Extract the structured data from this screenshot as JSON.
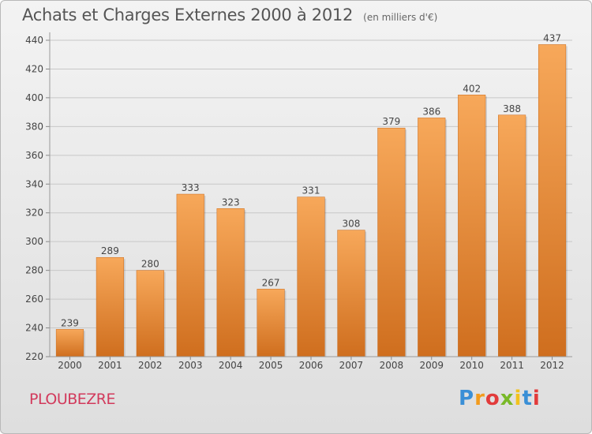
{
  "chart_data": {
    "type": "bar",
    "title": "Achats et Charges Externes 2000 à 2012",
    "subtitle": "(en milliers d'€)",
    "categories": [
      "2000",
      "2001",
      "2002",
      "2003",
      "2004",
      "2005",
      "2006",
      "2007",
      "2008",
      "2009",
      "2010",
      "2011",
      "2012"
    ],
    "values": [
      239,
      289,
      280,
      333,
      323,
      267,
      331,
      308,
      379,
      386,
      402,
      388,
      437
    ],
    "ylim": [
      220,
      440
    ],
    "yticks": [
      220,
      240,
      260,
      280,
      300,
      320,
      340,
      360,
      380,
      400,
      420,
      440
    ],
    "grid": true,
    "bar_color_top": "#f7a85a",
    "bar_color_bottom": "#cf6e1e"
  },
  "footer": {
    "town": "PLOUBEZRE",
    "brand": "Proxiti"
  }
}
